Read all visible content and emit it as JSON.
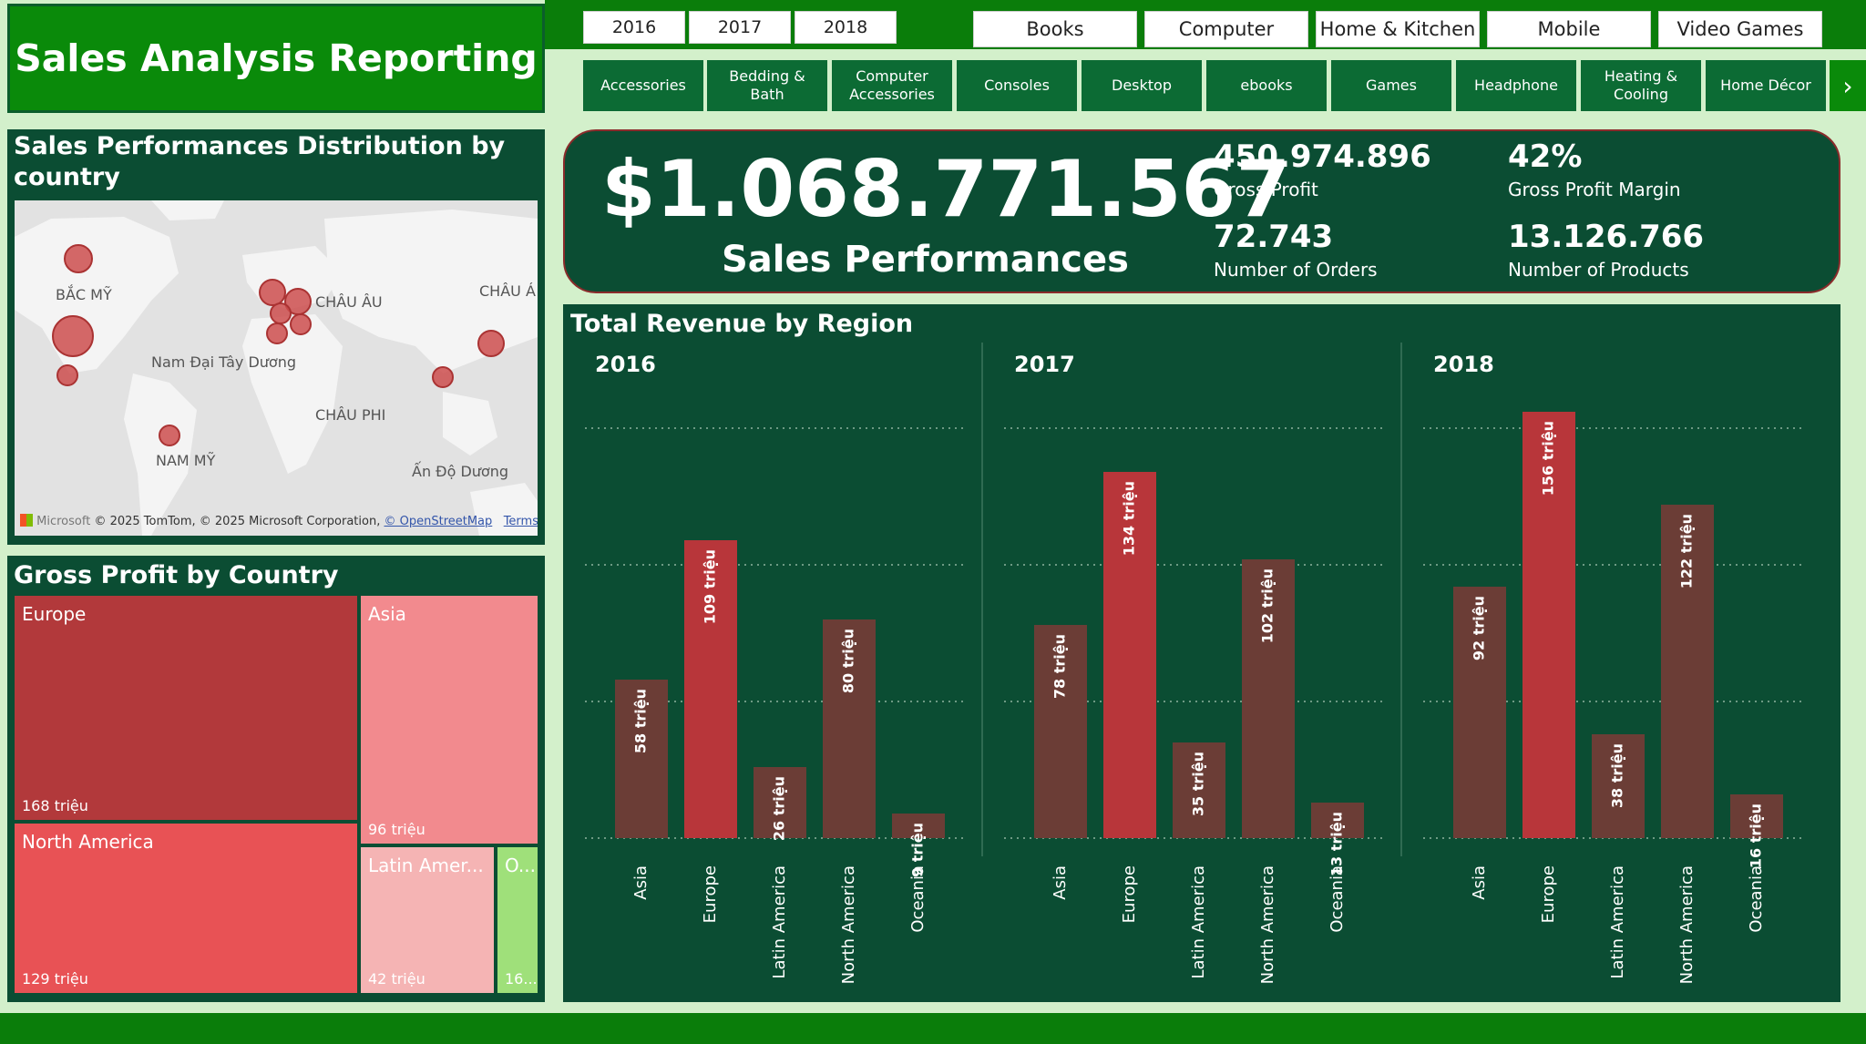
{
  "title": "Sales Analysis Reporting",
  "years": [
    "2016",
    "2017",
    "2018"
  ],
  "categories": [
    "Books",
    "Computer",
    "Home & Kitchen",
    "Mobile",
    "Video Games"
  ],
  "subcategories": [
    "Accessories",
    "Bedding & Bath",
    "Computer Accessories",
    "Consoles",
    "Desktop",
    "ebooks",
    "Games",
    "Headphone",
    "Heating & Cooling",
    "Home Décor"
  ],
  "subcategory_next_icon": "chevron-right-icon",
  "map": {
    "title": "Sales Performances Distribution by country",
    "labels": {
      "north_america": "BẮC MỸ",
      "europe": "CHÂU ÂU",
      "asia": "CHÂU Á",
      "atlantic": "Nam Đại Tây Dương",
      "africa": "CHÂU PHI",
      "south_america": "NAM MỸ",
      "indian_ocean": "Ấn Độ Dương"
    },
    "credit": "© 2025 TomTom, © 2025 Microsoft Corporation,",
    "credit_link": "© OpenStreetMap",
    "terms": "Terms",
    "logo_text": "Microsoft"
  },
  "treemap": {
    "title": "Gross Profit by Country",
    "tiles": [
      {
        "name": "Europe",
        "value": "168 triệu",
        "color": "#b2393b"
      },
      {
        "name": "Asia",
        "value": "96 triệu",
        "color": "#f28a8e"
      },
      {
        "name": "North America",
        "value": "129 triệu",
        "color": "#e85255"
      },
      {
        "name": "Latin Amer...",
        "value": "42 triệu",
        "color": "#f5b4b4"
      },
      {
        "name": "O...",
        "value": "16...",
        "color": "#9fe07a"
      }
    ]
  },
  "kpi": {
    "sales": "$1.068.771.567",
    "sales_label": "Sales Performances",
    "gross_profit": "450.974.896",
    "gross_profit_label": "Gross Profit",
    "margin": "42%",
    "margin_label": "Gross Profit Margin",
    "orders": "72.743",
    "orders_label": "Number of Orders",
    "products": "13.126.766",
    "products_label": "Number of Products"
  },
  "revenue": {
    "title": "Total Revenue by Region"
  },
  "chart_data": {
    "type": "bar",
    "title": "Total Revenue by Region",
    "unit": "triệu",
    "categories": [
      "Asia",
      "Europe",
      "Latin America",
      "North America",
      "Oceania"
    ],
    "panels": [
      {
        "year": "2016",
        "values": [
          58,
          109,
          26,
          80,
          9
        ],
        "labels": [
          "58 triệu",
          "109 triệu",
          "26 triệu",
          "80 triệu",
          "9 triệu"
        ]
      },
      {
        "year": "2017",
        "values": [
          78,
          134,
          35,
          102,
          13
        ],
        "labels": [
          "78 triệu",
          "134 triệu",
          "35 triệu",
          "102 triệu",
          "13 triệu"
        ]
      },
      {
        "year": "2018",
        "values": [
          92,
          156,
          38,
          122,
          16
        ],
        "labels": [
          "92 triệu",
          "156 triệu",
          "38 triệu",
          "122 triệu",
          "16 triệu"
        ]
      }
    ],
    "ylim": [
      0,
      150
    ],
    "grid": true,
    "colors": {
      "default": "#6b3d36",
      "highlight": "#b8363a"
    }
  }
}
